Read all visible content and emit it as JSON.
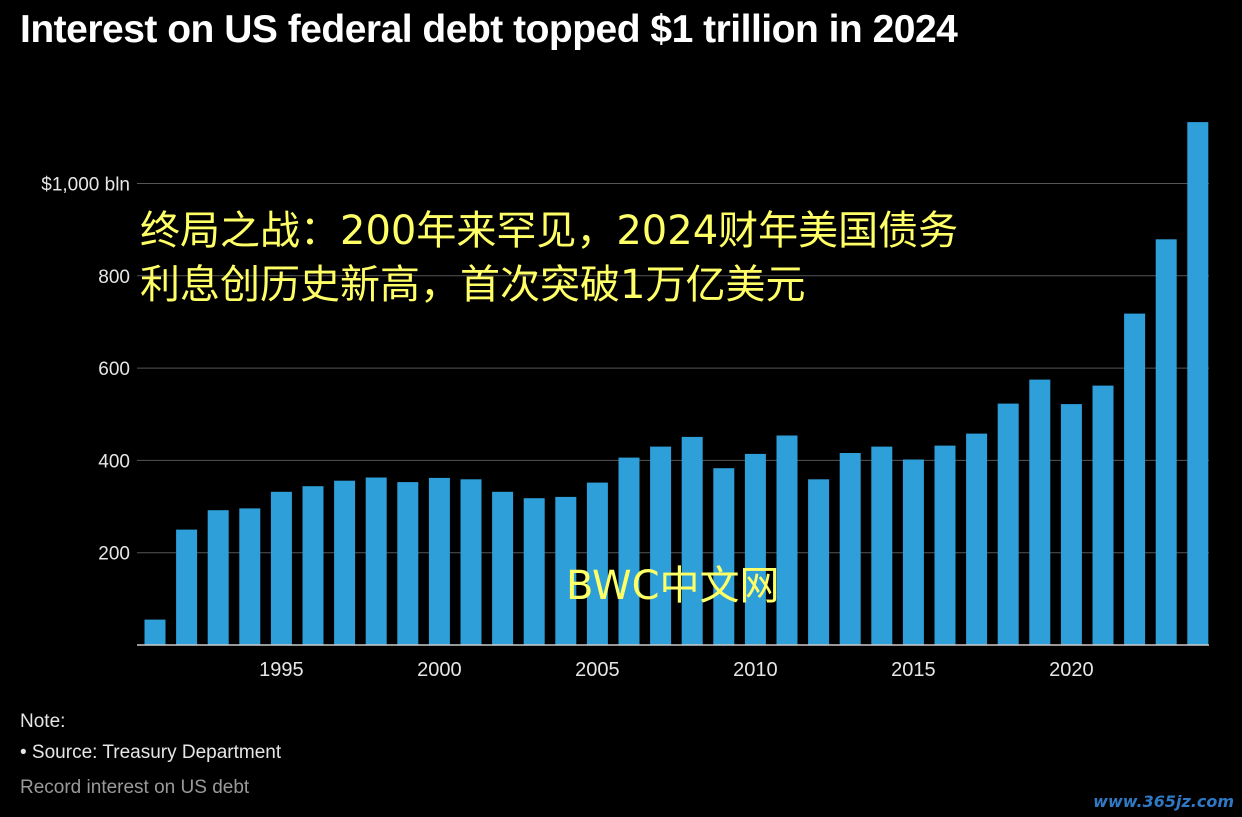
{
  "title": "Interest on US federal debt topped $1 trillion in 2024",
  "overlay_text": {
    "line1": "终局之战：200年来罕见，2024财年美国债务",
    "line2": "利息创历史新高，首次突破1万亿美元"
  },
  "center_watermark": "BWC中文网",
  "corner_watermark": "www.365jz.com",
  "note": {
    "title": "Note:",
    "item": "• Source: Treasury Department"
  },
  "subcaption": "Record interest on US debt",
  "colors": {
    "background": "#000000",
    "bar": "#2e9fd9",
    "grid": "#555555",
    "axis": "#cccccc",
    "overlay": "#ffff66"
  },
  "chart_data": {
    "type": "bar",
    "years": [
      1991,
      1992,
      1993,
      1994,
      1995,
      1996,
      1997,
      1998,
      1999,
      2000,
      2001,
      2002,
      2003,
      2004,
      2005,
      2006,
      2007,
      2008,
      2009,
      2010,
      2011,
      2012,
      2013,
      2014,
      2015,
      2016,
      2017,
      2018,
      2019,
      2020,
      2021,
      2022,
      2023,
      2024
    ],
    "values": [
      55,
      250,
      292,
      296,
      332,
      344,
      356,
      363,
      353,
      362,
      359,
      332,
      318,
      321,
      352,
      406,
      430,
      451,
      383,
      414,
      454,
      359,
      416,
      430,
      402,
      432,
      458,
      523,
      575,
      522,
      562,
      718,
      879,
      1133
    ],
    "y_ticks": [
      {
        "value": 200,
        "label": "200"
      },
      {
        "value": 400,
        "label": "400"
      },
      {
        "value": 600,
        "label": "600"
      },
      {
        "value": 800,
        "label": "800"
      },
      {
        "value": 1000,
        "label": "$1,000 bln"
      }
    ],
    "x_ticks": [
      {
        "value": 1995,
        "label": "1995"
      },
      {
        "value": 2000,
        "label": "2000"
      },
      {
        "value": 2005,
        "label": "2005"
      },
      {
        "value": 2010,
        "label": "2010"
      },
      {
        "value": 2015,
        "label": "2015"
      },
      {
        "value": 2020,
        "label": "2020"
      }
    ],
    "ylim": [
      0,
      1200
    ],
    "grid": true,
    "xlabel": "",
    "ylabel": ""
  }
}
